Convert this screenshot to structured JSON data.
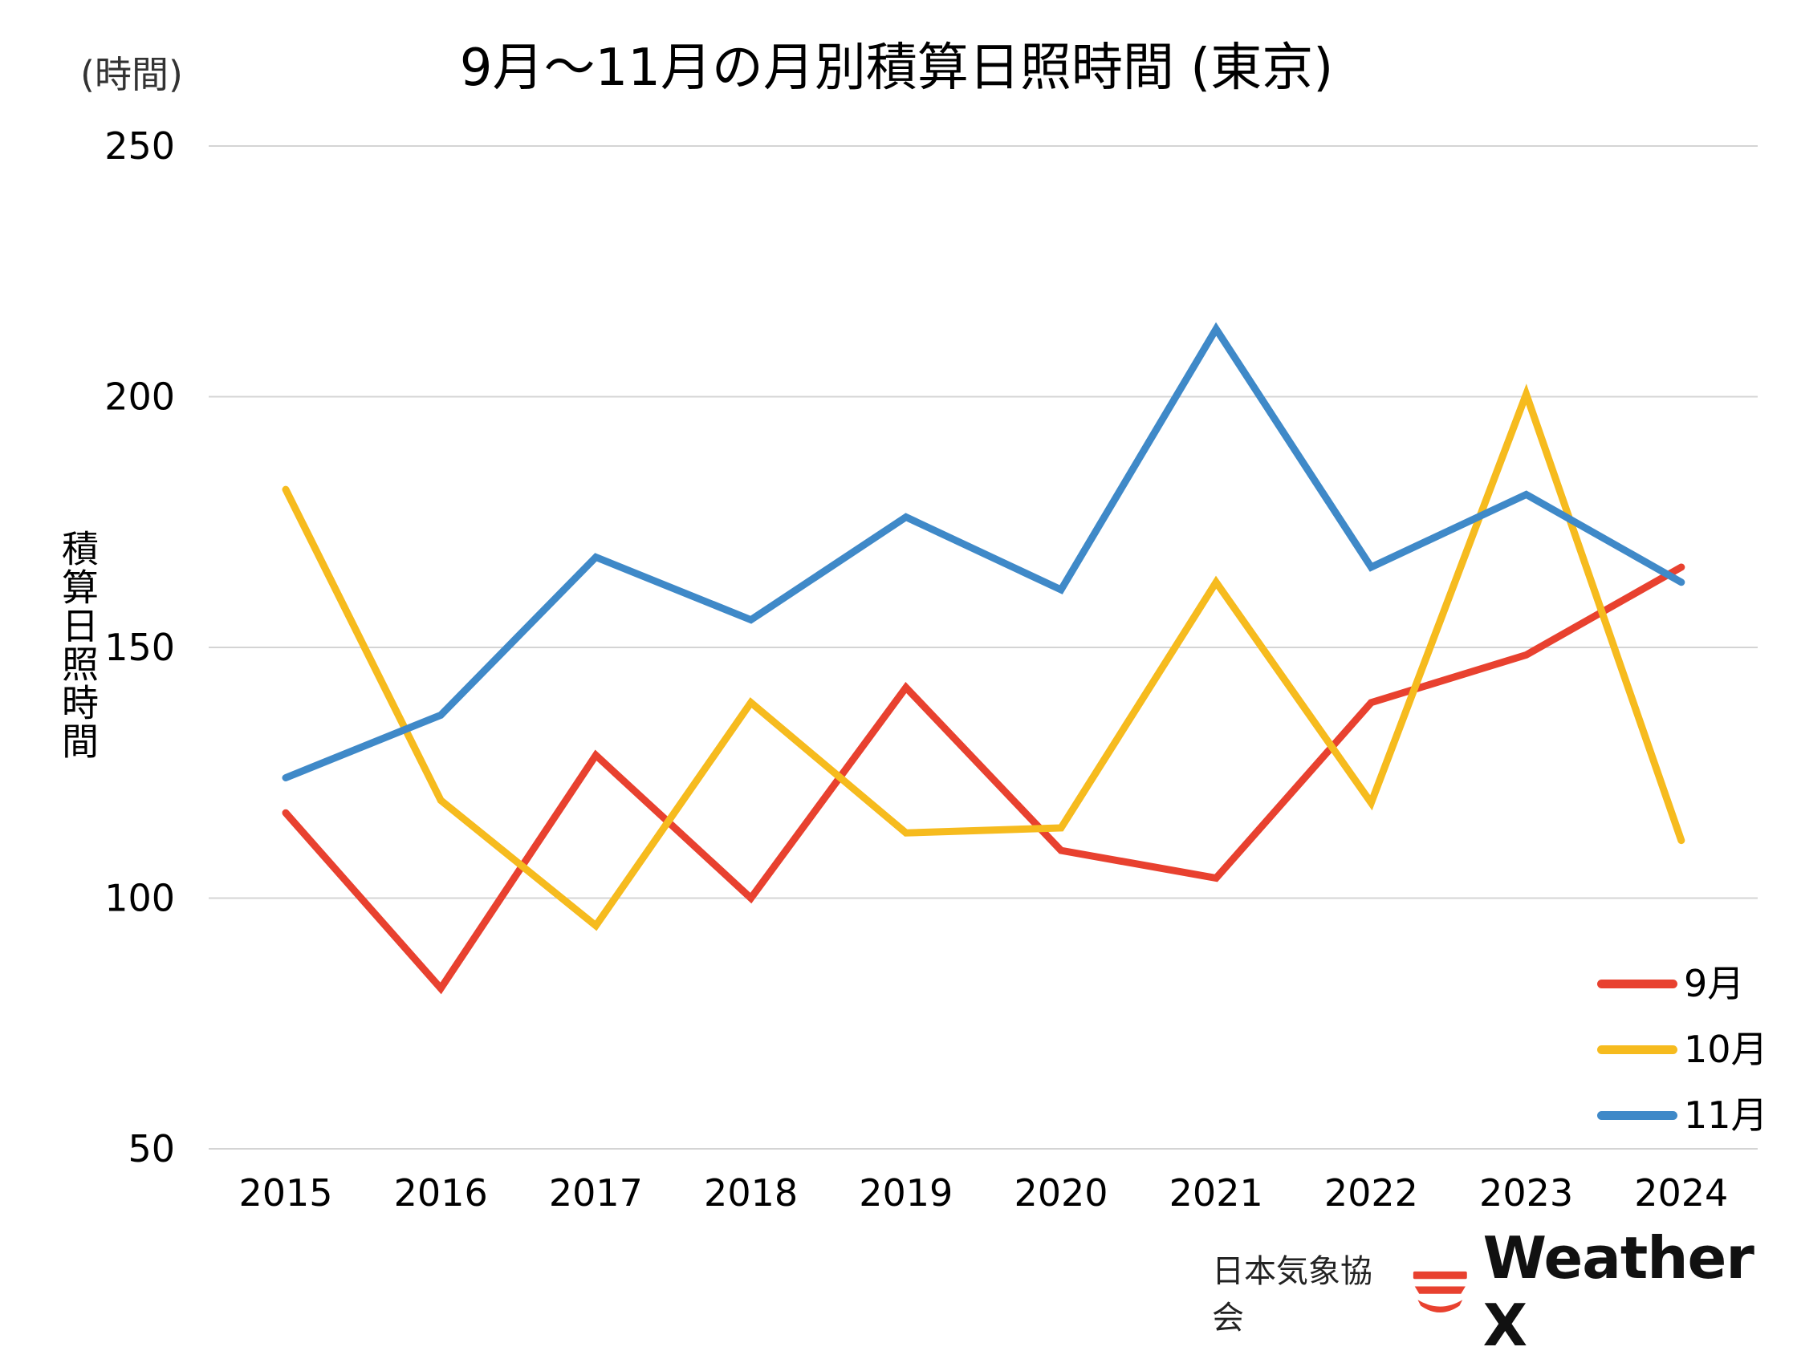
{
  "chart_data": {
    "type": "line",
    "title": "9月～11月の月別積算日照時間 (東京)",
    "y_unit": "(時間)",
    "ylabel": "積算日照時間",
    "xlabel": "",
    "categories": [
      "2015",
      "2016",
      "2017",
      "2018",
      "2019",
      "2020",
      "2021",
      "2022",
      "2023",
      "2024"
    ],
    "ylim": [
      50,
      250
    ],
    "yticks": [
      "50",
      "100",
      "150",
      "200",
      "250"
    ],
    "grid": true,
    "legend_position": "bottom-right",
    "series": [
      {
        "name": "9月",
        "color": "#e8412f",
        "values": [
          117,
          82,
          128.5,
          100,
          142,
          109.5,
          104,
          139,
          148.5,
          166
        ]
      },
      {
        "name": "10月",
        "color": "#f6bb1e",
        "values": [
          181.5,
          119.5,
          94.5,
          139,
          113,
          114,
          163,
          119,
          200.5,
          111.5
        ]
      },
      {
        "name": "11月",
        "color": "#3f89c8",
        "values": [
          124,
          136.5,
          168,
          155.5,
          176,
          161.5,
          213.5,
          166,
          180.5,
          163
        ]
      }
    ]
  },
  "footer": {
    "publisher": "日本気象協会",
    "brand": "Weather X",
    "brand_color": "#e8412f"
  }
}
